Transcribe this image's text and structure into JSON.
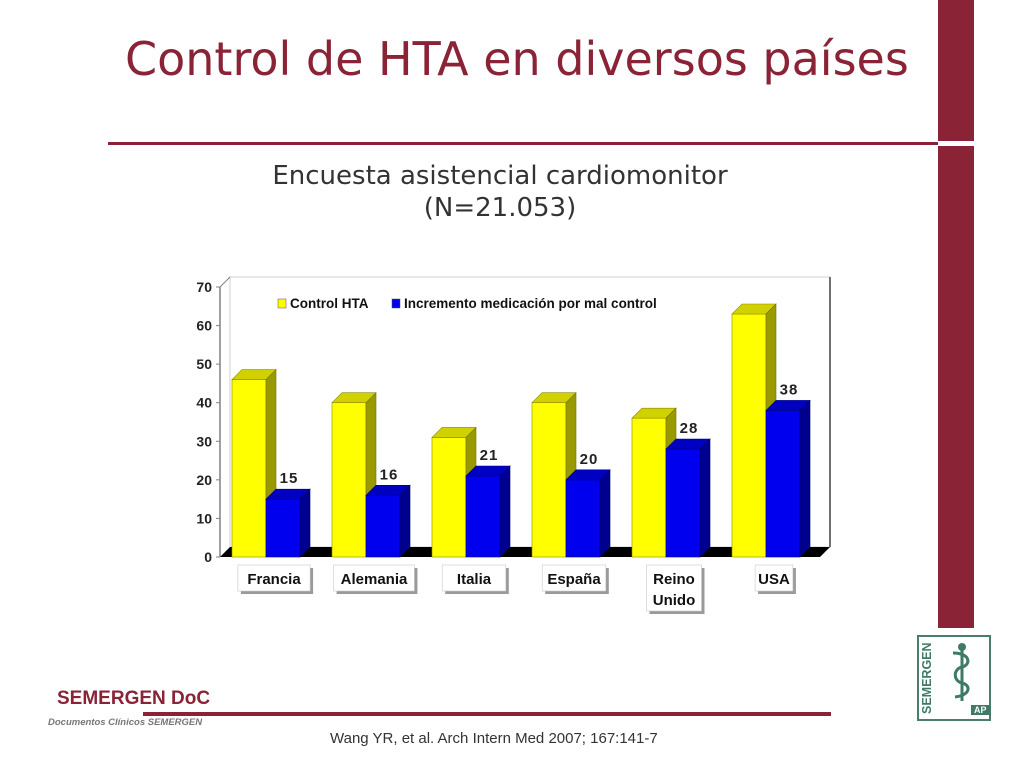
{
  "slide": {
    "title": "Control de HTA en diversos países",
    "subtitle_line1": "Encuesta asistencial cardiomonitor",
    "subtitle_line2": "(N=21.053)",
    "citation": "Wang YR, et al. Arch Intern Med 2007; 167:141-7",
    "logo_text": "SEMERGEN DoC",
    "logo_subtext": "Documentos Clínicos SEMERGEN",
    "corner_logo_text": "SEMERGEN",
    "corner_logo_badge": "AP",
    "accent_color": "#8a2336"
  },
  "chart_data": {
    "type": "bar",
    "style": "3d-clustered",
    "title": "",
    "xlabel": "",
    "ylabel": "",
    "categories": [
      "Francia",
      "Alemania",
      "Italia",
      "España",
      "Reino Unido",
      "USA"
    ],
    "category_lines": [
      [
        "Francia"
      ],
      [
        "Alemania"
      ],
      [
        "Italia"
      ],
      [
        "España"
      ],
      [
        "Reino",
        "Unido"
      ],
      [
        "USA"
      ]
    ],
    "series": [
      {
        "name": "Control HTA",
        "values": [
          46,
          40,
          31,
          40,
          36,
          63
        ],
        "color": "#ffff00",
        "data_labels": false
      },
      {
        "name": "Incremento medicación por mal control",
        "values": [
          15,
          16,
          21,
          20,
          28,
          38
        ],
        "color": "#0000ee",
        "data_labels": true
      }
    ],
    "ylim": [
      0,
      70
    ],
    "yticks": [
      0,
      10,
      20,
      30,
      40,
      50,
      60,
      70
    ],
    "grid": false,
    "legend": "top"
  }
}
